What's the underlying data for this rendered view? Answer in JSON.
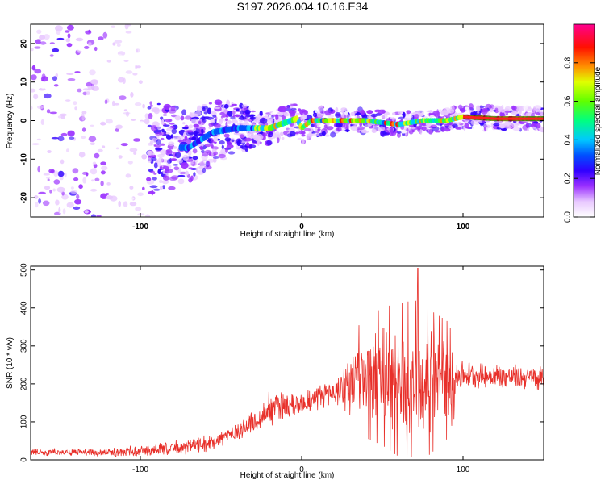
{
  "title": "S197.2026.004.10.16.E34",
  "colors": {
    "snr_line": "#e8302a",
    "axis": "#000000",
    "ridge": "#ff2020"
  },
  "chart_data": [
    {
      "type": "heatmap",
      "name": "spectrogram",
      "xlabel": "Height of straight line (km)",
      "ylabel": "Frequency (Hz)",
      "xlim": [
        -168,
        150
      ],
      "ylim": [
        -25,
        25
      ],
      "xticks": [
        -100,
        0,
        100
      ],
      "yticks": [
        -20,
        -10,
        0,
        10,
        20
      ],
      "colorbar": {
        "label": "Normalized spectral amplitude",
        "range": [
          0,
          1
        ],
        "ticks": [
          "0.0",
          "0.2",
          "0.4",
          "0.6",
          "0.8"
        ],
        "colormap": [
          "#ffffff",
          "#e8c8ff",
          "#9b30ff",
          "#5a00e0",
          "#0000ff",
          "#00c8ff",
          "#00ff80",
          "#a0ff00",
          "#ffff00",
          "#ff8000",
          "#ff0000",
          "#ff0080"
        ]
      },
      "ridge_freq": [
        {
          "x": -70,
          "f": -7
        },
        {
          "x": -55,
          "f": -3
        },
        {
          "x": -40,
          "f": -2
        },
        {
          "x": -30,
          "f": -2
        },
        {
          "x": -20,
          "f": -2
        },
        {
          "x": -10,
          "f": -0.5
        },
        {
          "x": -3,
          "f": 0.5
        },
        {
          "x": 0,
          "f": -2
        },
        {
          "x": 6,
          "f": 0
        },
        {
          "x": 20,
          "f": 0
        },
        {
          "x": 40,
          "f": 0
        },
        {
          "x": 60,
          "f": -1
        },
        {
          "x": 75,
          "f": 0
        },
        {
          "x": 90,
          "f": 0
        },
        {
          "x": 100,
          "f": 1
        },
        {
          "x": 120,
          "f": 0.5
        },
        {
          "x": 150,
          "f": 0.5
        }
      ]
    },
    {
      "type": "line",
      "name": "snr",
      "xlabel": "Height of straight line (km)",
      "ylabel": "SNR (10 * v/v)",
      "xlim": [
        -168,
        150
      ],
      "ylim": [
        0,
        510
      ],
      "xticks": [
        -100,
        0,
        100
      ],
      "yticks": [
        0,
        100,
        200,
        300,
        400,
        500
      ],
      "envelope": [
        {
          "x": -168,
          "base": 20,
          "amp": 10
        },
        {
          "x": -120,
          "base": 20,
          "amp": 12
        },
        {
          "x": -90,
          "base": 25,
          "amp": 20
        },
        {
          "x": -60,
          "base": 40,
          "amp": 25
        },
        {
          "x": -40,
          "base": 75,
          "amp": 30
        },
        {
          "x": -25,
          "base": 110,
          "amp": 35
        },
        {
          "x": -20,
          "base": 140,
          "amp": 60
        },
        {
          "x": 0,
          "base": 150,
          "amp": 35
        },
        {
          "x": 20,
          "base": 180,
          "amp": 45
        },
        {
          "x": 35,
          "base": 210,
          "amp": 110
        },
        {
          "x": 50,
          "base": 220,
          "amp": 140
        },
        {
          "x": 70,
          "base": 200,
          "amp": 170
        },
        {
          "x": 90,
          "base": 210,
          "amp": 120
        },
        {
          "x": 100,
          "base": 225,
          "amp": 40
        },
        {
          "x": 150,
          "base": 215,
          "amp": 35
        }
      ]
    }
  ]
}
